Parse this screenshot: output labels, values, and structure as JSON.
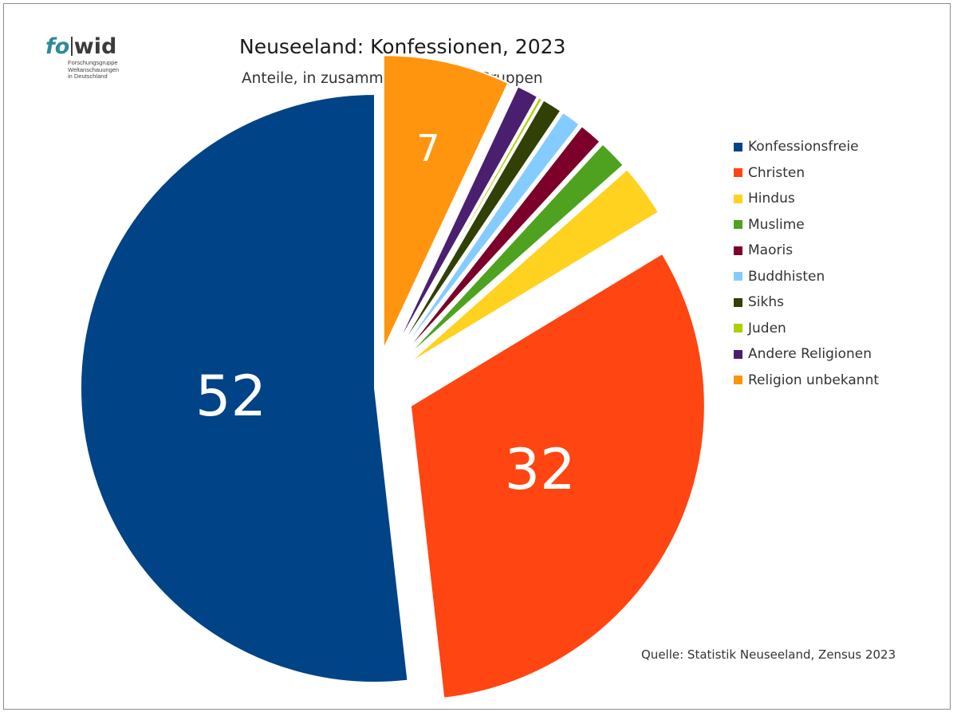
{
  "logo": {
    "fo": "fo",
    "wid": "wid",
    "subtitle_lines": [
      "Forschungsgruppe",
      "Weltanschauungen",
      "in Deutschland"
    ]
  },
  "chart_data": {
    "type": "pie",
    "title": "Neuseeland: Konfessionen, 2023",
    "subtitle": "Anteile, in zusammengefassten Gruppen",
    "source": "Quelle: Statistik Neuseeland, Zensus 2023",
    "legend_position": "right",
    "start_angle_deg": 0,
    "direction": "counterclockwise",
    "slices": [
      {
        "label": "Konfessionsfreie",
        "value": 52,
        "color": "#004386",
        "data_label": "52",
        "exploded": false
      },
      {
        "label": "Christen",
        "value": 32,
        "color": "#ff4511",
        "data_label": "32",
        "exploded": true
      },
      {
        "label": "Hindus",
        "value": 2.9,
        "color": "#ffd21f",
        "data_label": "",
        "exploded": true
      },
      {
        "label": "Muslime",
        "value": 1.6,
        "color": "#4ea21f",
        "data_label": "",
        "exploded": true
      },
      {
        "label": "Maoris",
        "value": 1.3,
        "color": "#7c0029",
        "data_label": "",
        "exploded": true
      },
      {
        "label": "Buddhisten",
        "value": 1.1,
        "color": "#84ccff",
        "data_label": "",
        "exploded": true
      },
      {
        "label": "Sikhs",
        "value": 1.1,
        "color": "#314004",
        "data_label": "",
        "exploded": true
      },
      {
        "label": "Juden",
        "value": 0.2,
        "color": "#aecf00",
        "data_label": "",
        "exploded": true
      },
      {
        "label": "Andere Religionen",
        "value": 1.2,
        "color": "#4b1f6f",
        "data_label": "",
        "exploded": true
      },
      {
        "label": "Religion unbekannt",
        "value": 7,
        "color": "#ff950e",
        "data_label": "7",
        "exploded": true
      }
    ]
  }
}
